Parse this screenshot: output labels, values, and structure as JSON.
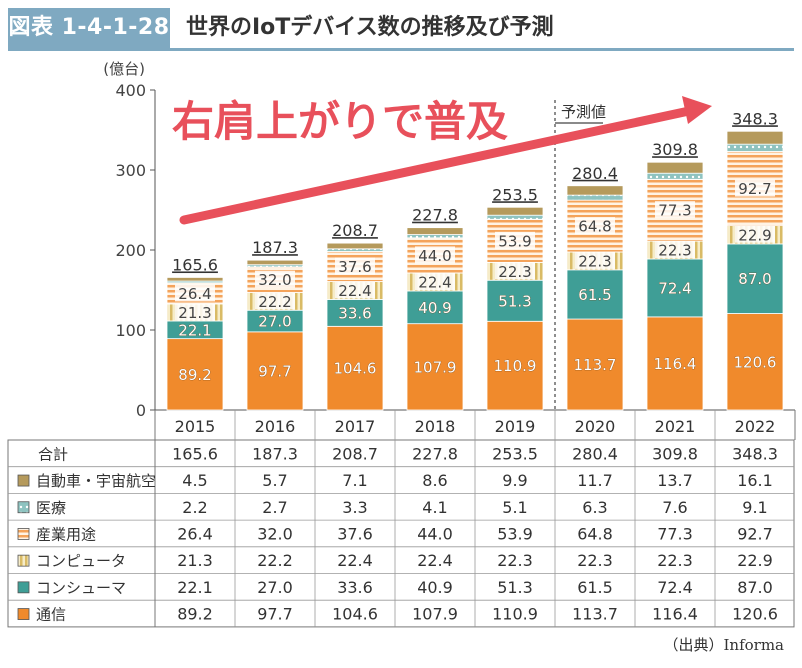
{
  "header": {
    "label": "図表 1-4-1-28",
    "title": "世界のIoTデバイス数の推移及び予測"
  },
  "source": "（出典）Informa",
  "chart_data": {
    "type": "bar",
    "stacked": true,
    "unit_label": "(億台)",
    "ylim": [
      0,
      400
    ],
    "yticks": [
      0,
      100,
      200,
      300,
      400
    ],
    "categories": [
      "2015",
      "2016",
      "2017",
      "2018",
      "2019",
      "2020",
      "2021",
      "2022"
    ],
    "annotation": "右肩上がりで普及",
    "forecast_label": "予測値",
    "forecast_start": "2020",
    "table_total_label": "合計",
    "totals": [
      "165.6",
      "187.3",
      "208.7",
      "227.8",
      "253.5",
      "280.4",
      "309.8",
      "348.3"
    ],
    "series": [
      {
        "name": "通信",
        "color": "#f08a2c",
        "pattern": "solid",
        "values": [
          89.2,
          97.7,
          104.6,
          107.9,
          110.9,
          113.7,
          116.4,
          120.6
        ],
        "labels": [
          "89.2",
          "97.7",
          "104.6",
          "107.9",
          "110.9",
          "113.7",
          "116.4",
          "120.6"
        ]
      },
      {
        "name": "コンシューマ",
        "color": "#3f9e96",
        "pattern": "solid",
        "values": [
          22.1,
          27.0,
          33.6,
          40.9,
          51.3,
          61.5,
          72.4,
          87.0
        ],
        "labels": [
          "22.1",
          "27.0",
          "33.6",
          "40.9",
          "51.3",
          "61.5",
          "72.4",
          "87.0"
        ]
      },
      {
        "name": "コンピュータ",
        "color": "#d9bb66",
        "pattern": "vlines",
        "values": [
          21.3,
          22.2,
          22.4,
          22.4,
          22.3,
          22.3,
          22.3,
          22.9
        ],
        "labels": [
          "21.3",
          "22.2",
          "22.4",
          "22.4",
          "22.3",
          "22.3",
          "22.3",
          "22.9"
        ]
      },
      {
        "name": "産業用途",
        "color": "#f4a35a",
        "pattern": "hlines",
        "values": [
          26.4,
          32.0,
          37.6,
          44.0,
          53.9,
          64.8,
          77.3,
          92.7
        ],
        "labels": [
          "26.4",
          "32.0",
          "37.6",
          "44.0",
          "53.9",
          "64.8",
          "77.3",
          "92.7"
        ]
      },
      {
        "name": "医療",
        "color": "#8ec3c0",
        "pattern": "dots",
        "values": [
          2.2,
          2.7,
          3.3,
          4.1,
          5.1,
          6.3,
          7.6,
          9.1
        ],
        "labels": [
          "2.2",
          "2.7",
          "3.3",
          "4.1",
          "5.1",
          "6.3",
          "7.6",
          "9.1"
        ]
      },
      {
        "name": "自動車・宇宙航空",
        "color": "#b59a5c",
        "pattern": "solid",
        "values": [
          4.5,
          5.7,
          7.1,
          8.6,
          9.9,
          11.7,
          13.7,
          16.1
        ],
        "labels": [
          "4.5",
          "5.7",
          "7.1",
          "8.6",
          "9.9",
          "11.7",
          "13.7",
          "16.1"
        ]
      }
    ],
    "table_order": [
      "自動車・宇宙航空",
      "医療",
      "産業用途",
      "コンピュータ",
      "コンシューマ",
      "通信"
    ]
  }
}
